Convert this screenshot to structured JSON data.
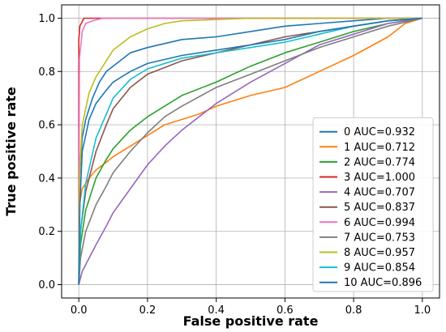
{
  "chart_data": {
    "type": "line",
    "title": "",
    "xlabel": "False positive rate",
    "ylabel": "True positive rate",
    "xlim": [
      -0.05,
      1.05
    ],
    "ylim": [
      -0.05,
      1.05
    ],
    "xticks": [
      "0.0",
      "0.2",
      "0.4",
      "0.6",
      "0.8",
      "1.0"
    ],
    "yticks": [
      "0.0",
      "0.2",
      "0.4",
      "0.6",
      "0.8",
      "1.0"
    ],
    "grid": true,
    "legend_position": "lower-right",
    "series": [
      {
        "name": "0 AUC=0.932",
        "color": "#1f77b4",
        "x": [
          0,
          0.002,
          0.01,
          0.02,
          0.04,
          0.06,
          0.08,
          0.1,
          0.15,
          0.2,
          0.3,
          0.4,
          0.5,
          0.6,
          0.7,
          0.8,
          0.9,
          1.0
        ],
        "y": [
          0,
          0.4,
          0.55,
          0.62,
          0.7,
          0.76,
          0.8,
          0.82,
          0.87,
          0.89,
          0.92,
          0.93,
          0.95,
          0.97,
          0.98,
          0.99,
          1.0,
          1.0
        ]
      },
      {
        "name": "1 AUC=0.712",
        "color": "#ff7f0e",
        "x": [
          0,
          0.002,
          0.01,
          0.03,
          0.05,
          0.08,
          0.1,
          0.15,
          0.2,
          0.25,
          0.3,
          0.35,
          0.4,
          0.5,
          0.6,
          0.7,
          0.8,
          0.9,
          0.95,
          1.0
        ],
        "y": [
          0,
          0.3,
          0.36,
          0.4,
          0.43,
          0.46,
          0.48,
          0.52,
          0.56,
          0.6,
          0.62,
          0.64,
          0.67,
          0.71,
          0.74,
          0.8,
          0.86,
          0.93,
          0.98,
          1.0
        ]
      },
      {
        "name": "2 AUC=0.774",
        "color": "#2ca02c",
        "x": [
          0,
          0.005,
          0.02,
          0.05,
          0.08,
          0.1,
          0.15,
          0.2,
          0.25,
          0.3,
          0.4,
          0.5,
          0.6,
          0.7,
          0.8,
          0.9,
          1.0
        ],
        "y": [
          0,
          0.15,
          0.28,
          0.4,
          0.47,
          0.51,
          0.58,
          0.63,
          0.67,
          0.71,
          0.76,
          0.82,
          0.87,
          0.91,
          0.95,
          0.98,
          1.0
        ]
      },
      {
        "name": "3 AUC=1.000",
        "color": "#d62728",
        "x": [
          0,
          0,
          0.003,
          0.015,
          0.03,
          1.0
        ],
        "y": [
          0,
          0.92,
          0.97,
          1.0,
          1.0,
          1.0
        ]
      },
      {
        "name": "4 AUC=0.707",
        "color": "#9467bd",
        "x": [
          0,
          0.01,
          0.03,
          0.05,
          0.08,
          0.1,
          0.15,
          0.2,
          0.25,
          0.3,
          0.4,
          0.5,
          0.6,
          0.7,
          0.8,
          0.9,
          1.0
        ],
        "y": [
          0,
          0.05,
          0.1,
          0.15,
          0.22,
          0.27,
          0.36,
          0.45,
          0.52,
          0.58,
          0.68,
          0.76,
          0.83,
          0.9,
          0.94,
          0.98,
          1.0
        ]
      },
      {
        "name": "5 AUC=0.837",
        "color": "#8c564b",
        "x": [
          0,
          0.005,
          0.02,
          0.05,
          0.08,
          0.1,
          0.15,
          0.2,
          0.3,
          0.4,
          0.5,
          0.6,
          0.7,
          0.8,
          0.9,
          1.0
        ],
        "y": [
          0,
          0.2,
          0.35,
          0.5,
          0.6,
          0.66,
          0.74,
          0.79,
          0.84,
          0.87,
          0.9,
          0.93,
          0.95,
          0.97,
          0.99,
          1.0
        ]
      },
      {
        "name": "6 AUC=0.994",
        "color": "#e377c2",
        "x": [
          0,
          0.002,
          0.01,
          0.02,
          0.04,
          0.07,
          0.1,
          0.2,
          1.0
        ],
        "y": [
          0,
          0.85,
          0.95,
          0.98,
          0.99,
          1.0,
          1.0,
          1.0,
          1.0
        ]
      },
      {
        "name": "7 AUC=0.753",
        "color": "#7f7f7f",
        "x": [
          0,
          0.005,
          0.02,
          0.05,
          0.08,
          0.1,
          0.15,
          0.2,
          0.25,
          0.3,
          0.4,
          0.5,
          0.6,
          0.7,
          0.8,
          0.9,
          1.0
        ],
        "y": [
          0,
          0.1,
          0.2,
          0.3,
          0.37,
          0.42,
          0.5,
          0.57,
          0.63,
          0.67,
          0.74,
          0.79,
          0.84,
          0.89,
          0.93,
          0.97,
          1.0
        ]
      },
      {
        "name": "8 AUC=0.957",
        "color": "#bcbd22",
        "x": [
          0,
          0.002,
          0.01,
          0.03,
          0.05,
          0.08,
          0.1,
          0.15,
          0.2,
          0.25,
          0.3,
          0.4,
          0.5,
          0.6,
          1.0
        ],
        "y": [
          0,
          0.4,
          0.6,
          0.72,
          0.78,
          0.84,
          0.88,
          0.93,
          0.96,
          0.98,
          0.99,
          0.995,
          1.0,
          1.0,
          1.0
        ]
      },
      {
        "name": "9 AUC=0.854",
        "color": "#17becf",
        "x": [
          0,
          0.005,
          0.02,
          0.05,
          0.08,
          0.1,
          0.15,
          0.2,
          0.3,
          0.4,
          0.5,
          0.6,
          0.7,
          0.8,
          0.9,
          1.0
        ],
        "y": [
          0,
          0.2,
          0.38,
          0.55,
          0.64,
          0.7,
          0.77,
          0.81,
          0.85,
          0.87,
          0.89,
          0.91,
          0.94,
          0.97,
          0.99,
          1.0
        ]
      },
      {
        "name": "10 AUC=0.896",
        "color": "#1f77b4",
        "x": [
          0,
          0.003,
          0.01,
          0.03,
          0.05,
          0.08,
          0.1,
          0.15,
          0.2,
          0.3,
          0.4,
          0.5,
          0.6,
          0.7,
          0.8,
          0.9,
          1.0
        ],
        "y": [
          0,
          0.3,
          0.5,
          0.62,
          0.68,
          0.73,
          0.76,
          0.8,
          0.83,
          0.86,
          0.88,
          0.9,
          0.92,
          0.95,
          0.97,
          0.99,
          1.0
        ]
      }
    ]
  }
}
